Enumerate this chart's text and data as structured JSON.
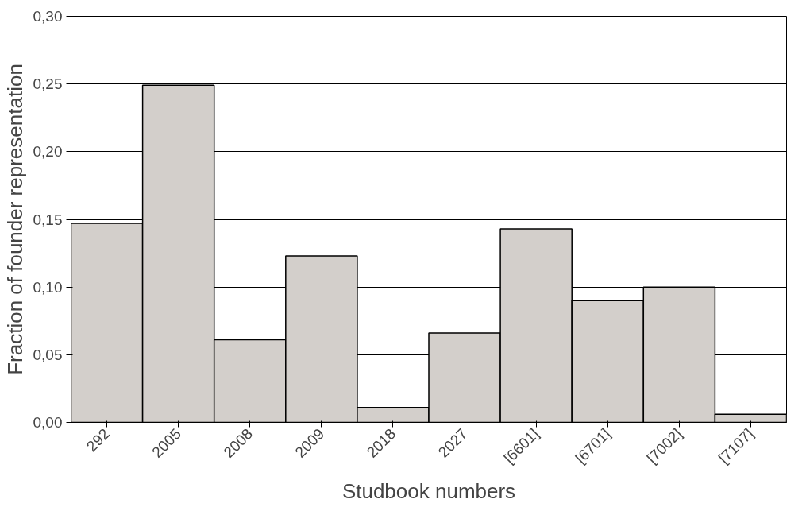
{
  "chart_data": {
    "type": "bar",
    "xlabel": "Studbook numbers",
    "ylabel": "Fraction of founder representation",
    "categories": [
      "292",
      "2005",
      "2008",
      "2009",
      "2018",
      "2027",
      "[6601]",
      "[6701]",
      "[7002]",
      "[7107]"
    ],
    "values": [
      0.147,
      0.249,
      0.061,
      0.123,
      0.011,
      0.066,
      0.143,
      0.09,
      0.1,
      0.006
    ],
    "color": "#d3cfcb",
    "ylim": [
      0,
      0.3
    ],
    "yticks": [
      {
        "value": 0,
        "label": "0,00"
      },
      {
        "value": 0.05,
        "label": "0,05"
      },
      {
        "value": 0.1,
        "label": "0,10"
      },
      {
        "value": 0.15,
        "label": "0,15"
      },
      {
        "value": 0.2,
        "label": "0,20"
      },
      {
        "value": 0.25,
        "label": "0,25"
      },
      {
        "value": 0.3,
        "label": "0,30"
      }
    ],
    "grid": "y"
  }
}
